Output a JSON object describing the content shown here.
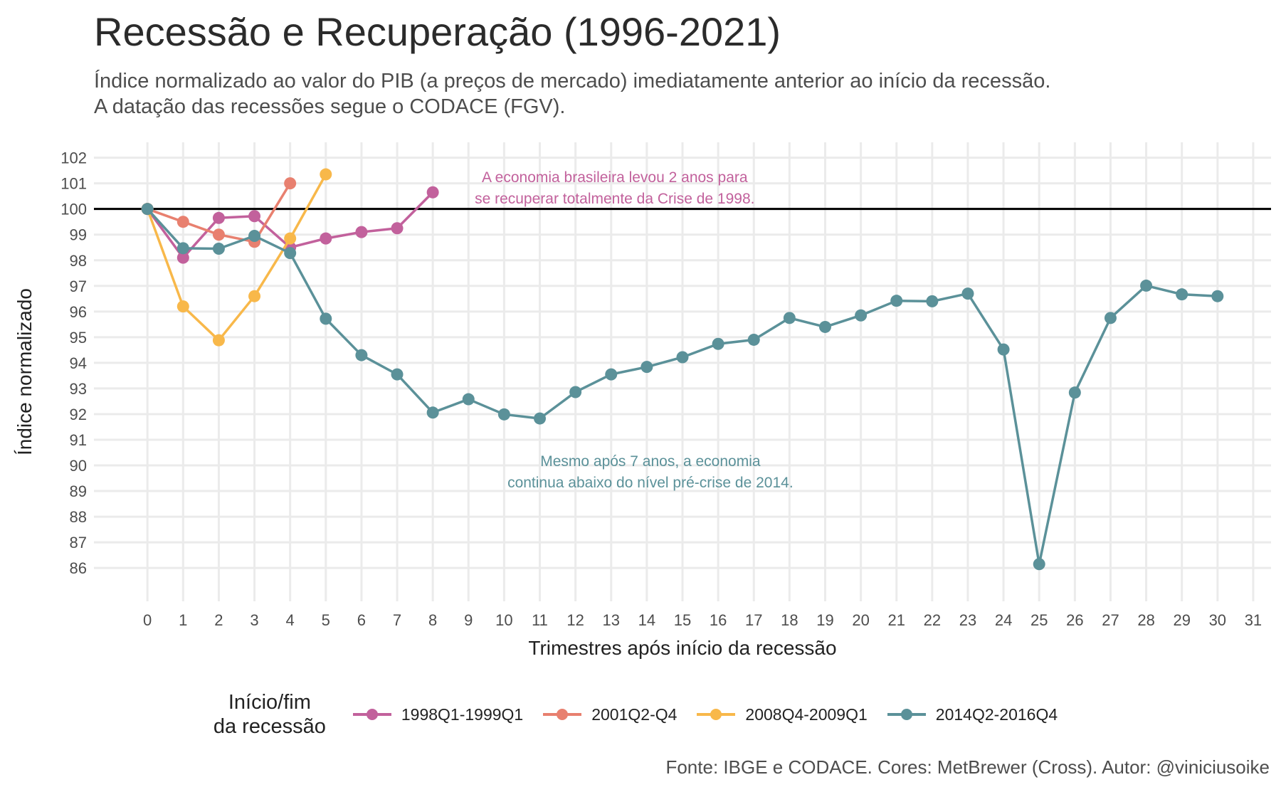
{
  "chart_data": {
    "type": "line",
    "title": "Recessão e Recuperação (1996-2021)",
    "subtitle_lines": [
      "Índice normalizado ao valor do PIB (a preços de mercado) imediatamente anterior ao início da recessão.",
      "A datação das recessões segue o CODACE (FGV)."
    ],
    "xlabel": "Trimestres após início da recessão",
    "ylabel": "Índice normalizado",
    "caption": "Fonte: IBGE e CODACE. Cores: MetBrewer (Cross). Autor: @viniciusoike",
    "xlim": [
      -1.5,
      31.5
    ],
    "ylim": [
      84.7,
      102.6
    ],
    "x_ticks": [
      0,
      1,
      2,
      3,
      4,
      5,
      6,
      7,
      8,
      9,
      10,
      11,
      12,
      13,
      14,
      15,
      16,
      17,
      18,
      19,
      20,
      21,
      22,
      23,
      24,
      25,
      26,
      27,
      28,
      29,
      30,
      31
    ],
    "y_ticks": [
      86,
      87,
      88,
      89,
      90,
      91,
      92,
      93,
      94,
      95,
      96,
      97,
      98,
      99,
      100,
      101,
      102
    ],
    "reference_line": 100,
    "grid": true,
    "legend": {
      "title_lines": [
        "Início/fim",
        "da recessão"
      ],
      "position": "bottom"
    },
    "series": [
      {
        "name": "1998Q1-1999Q1",
        "color": "#c2619c",
        "x": [
          0,
          1,
          2,
          3,
          4,
          5,
          6,
          7,
          8
        ],
        "values": [
          100,
          98.1,
          99.65,
          99.72,
          98.5,
          98.85,
          99.1,
          99.25,
          100.65
        ]
      },
      {
        "name": "2001Q2-Q4",
        "color": "#e8806f",
        "x": [
          0,
          1,
          2,
          3,
          4
        ],
        "values": [
          100,
          99.5,
          99.0,
          98.72,
          101.0
        ]
      },
      {
        "name": "2008Q4-2009Q1",
        "color": "#f8b84a",
        "x": [
          0,
          1,
          2,
          3,
          4,
          5
        ],
        "values": [
          100,
          96.2,
          94.88,
          96.6,
          98.85,
          101.35
        ]
      },
      {
        "name": "2014Q2-2016Q4",
        "color": "#5b9199",
        "x": [
          0,
          1,
          2,
          3,
          4,
          5,
          6,
          7,
          8,
          9,
          10,
          11,
          12,
          13,
          14,
          15,
          16,
          17,
          18,
          19,
          20,
          21,
          22,
          23,
          24,
          25,
          26,
          27,
          28,
          29,
          30
        ],
        "values": [
          100,
          98.47,
          98.45,
          98.95,
          98.28,
          95.72,
          94.3,
          93.55,
          92.06,
          92.58,
          91.99,
          91.83,
          92.86,
          93.55,
          93.84,
          94.22,
          94.74,
          94.9,
          95.75,
          95.4,
          95.85,
          96.42,
          96.4,
          96.7,
          94.52,
          86.15,
          92.84,
          95.75,
          97.01,
          96.67,
          96.6
        ]
      }
    ],
    "annotations": [
      {
        "lines": [
          "A economia brasileira levou 2 anos para",
          "se recuperar totalmente da Crise de 1998."
        ],
        "x": 13.1,
        "y": 101.05,
        "color": "#c2619c"
      },
      {
        "lines": [
          "Mesmo após 7 anos, a economia",
          "continua abaixo do nível pré-crise de 2014."
        ],
        "x": 14.1,
        "y": 89.97,
        "color": "#5b9199"
      }
    ]
  }
}
